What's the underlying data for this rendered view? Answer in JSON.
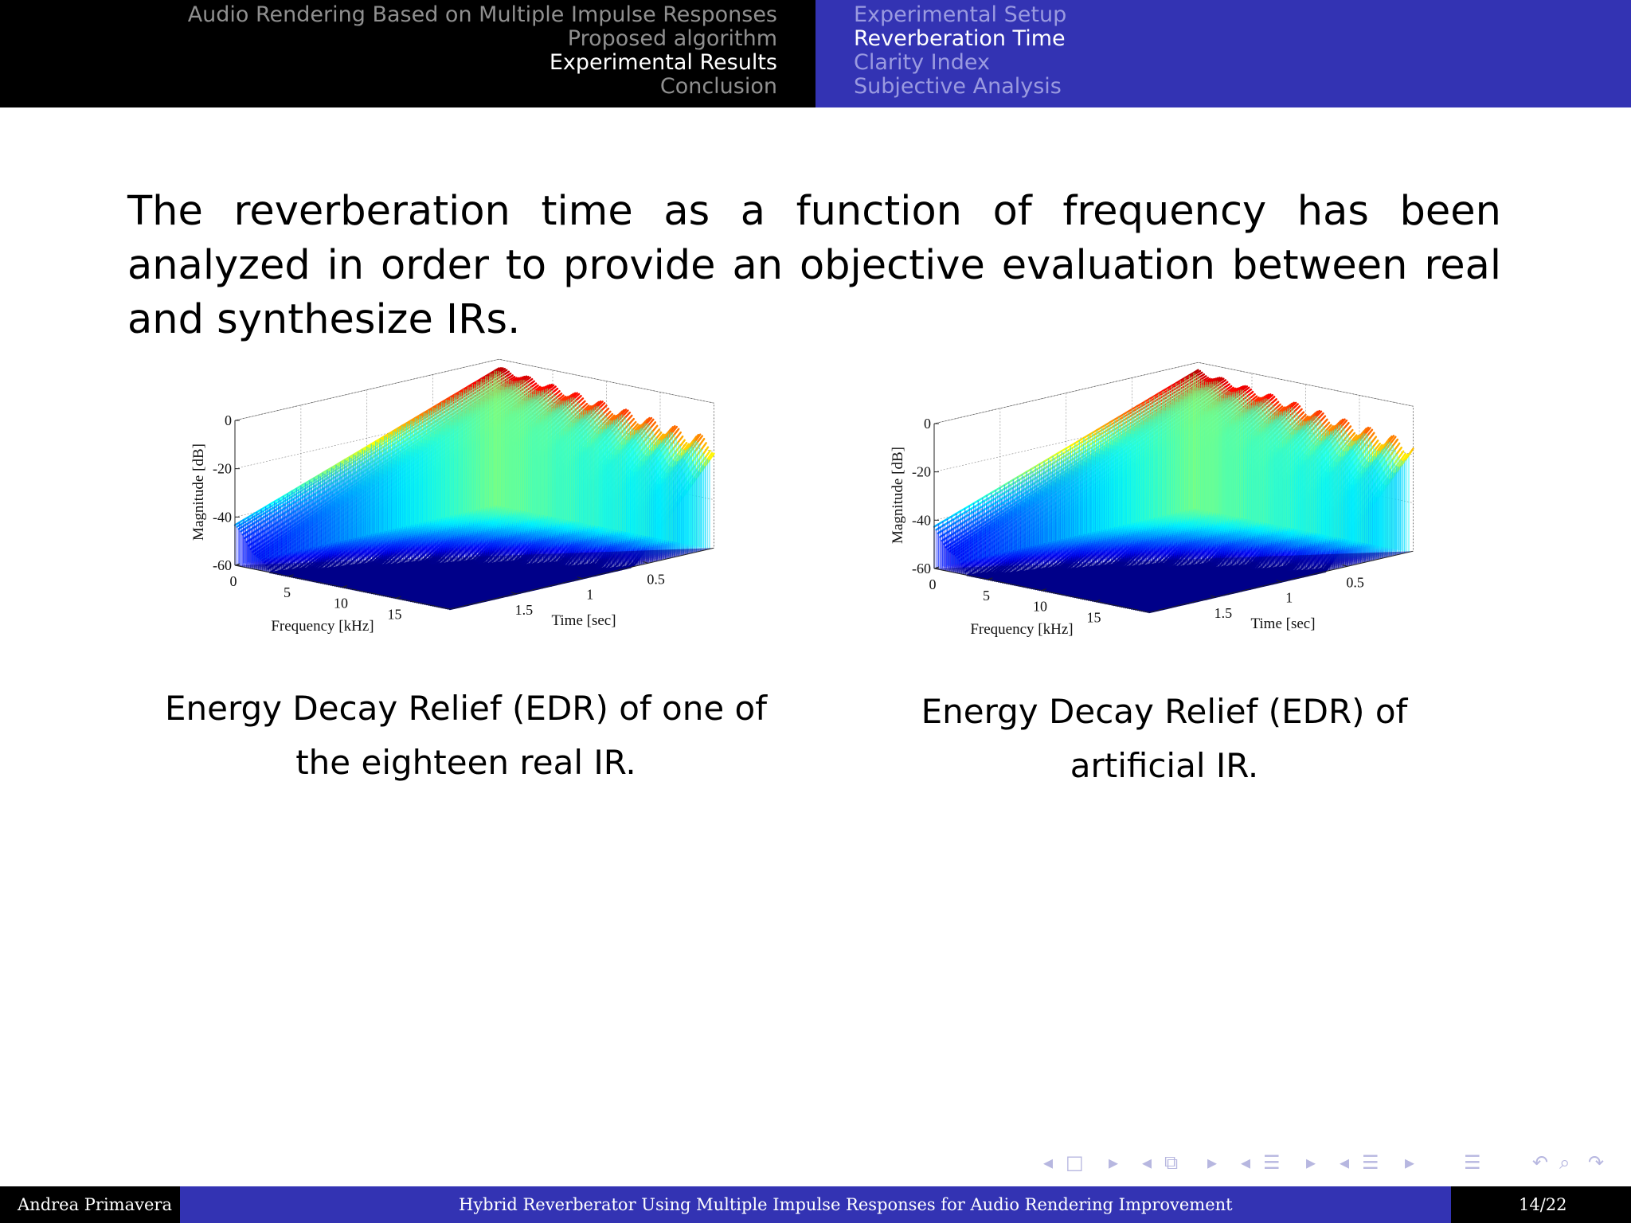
{
  "header": {
    "sections": [
      {
        "label": "Audio Rendering Based on Multiple Impulse Responses",
        "active": false
      },
      {
        "label": "Proposed algorithm",
        "active": false
      },
      {
        "label": "Experimental Results",
        "active": true
      },
      {
        "label": "Conclusion",
        "active": false
      }
    ],
    "subsections": [
      {
        "label": "Experimental Setup",
        "active": false
      },
      {
        "label": "Reverberation Time",
        "active": true
      },
      {
        "label": "Clarity Index",
        "active": false
      },
      {
        "label": "Subjective Analysis",
        "active": false
      }
    ]
  },
  "body": {
    "intro": "The reverberation time as a function of frequency has been analyzed in order to provide an objective evaluation between real and synthesize IRs."
  },
  "figures": [
    {
      "caption_line1": "Energy Decay Relief (EDR) of one of",
      "caption_line2": "the eighteen real IR."
    },
    {
      "caption_line1": "Energy Decay Relief (EDR) of",
      "caption_line2": "artificial IR."
    }
  ],
  "chart_data": [
    {
      "type": "surface",
      "title": "",
      "xlabel": "Frequency [kHz]",
      "ylabel": "Time [sec]",
      "zlabel": "Magnitude [dB]",
      "x_ticks": [
        "0",
        "5",
        "10",
        "15"
      ],
      "y_ticks": [
        "0.5",
        "1",
        "1.5"
      ],
      "z_ticks": [
        "0",
        "-20",
        "-40",
        "-60"
      ],
      "xlim": [
        0,
        20
      ],
      "ylim": [
        0,
        2
      ],
      "zlim": [
        -60,
        0
      ],
      "colormap": "jet",
      "grid": true
    },
    {
      "type": "surface",
      "title": "",
      "xlabel": "Frequency [kHz]",
      "ylabel": "Time [sec]",
      "zlabel": "Magnitude [dB]",
      "x_ticks": [
        "0",
        "5",
        "10",
        "15"
      ],
      "y_ticks": [
        "0.5",
        "1",
        "1.5"
      ],
      "z_ticks": [
        "0",
        "-20",
        "-40",
        "-60"
      ],
      "xlim": [
        0,
        20
      ],
      "ylim": [
        0,
        2
      ],
      "zlim": [
        -60,
        0
      ],
      "colormap": "jet",
      "grid": true
    }
  ],
  "footer": {
    "author": "Andrea Primavera",
    "title": "Hybrid Reverberator Using Multiple Impulse Responses for Audio Rendering Improvement",
    "page": "14/22"
  },
  "nav_icons": [
    "arrow-left-icon",
    "frame-icon",
    "arrow-right-icon",
    "arrow-left-icon",
    "subsection-icon",
    "arrow-right-icon",
    "arrow-left-icon",
    "section-icon",
    "arrow-right-icon",
    "arrow-left-icon",
    "document-icon",
    "arrow-right-icon",
    "toc-icon",
    "back-icon",
    "search-icon",
    "forward-icon"
  ]
}
